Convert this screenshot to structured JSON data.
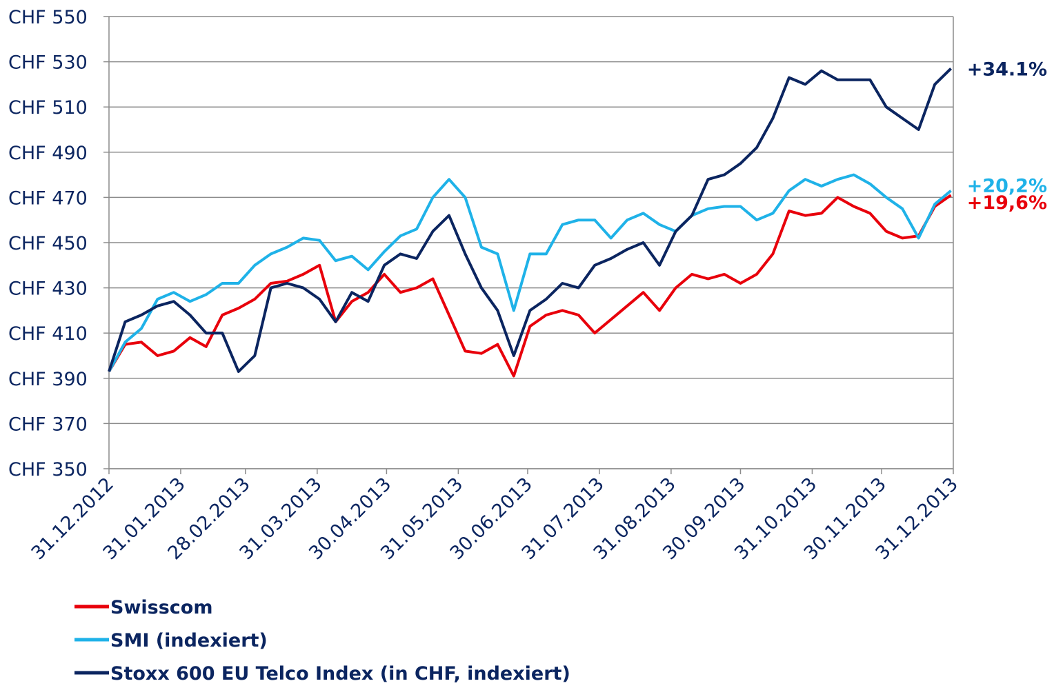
{
  "chart_data": {
    "type": "line",
    "x": [
      "31.12.2012",
      "07.01.2013",
      "14.01.2013",
      "21.01.2013",
      "28.01.2013",
      "04.02.2013",
      "11.02.2013",
      "18.02.2013",
      "25.02.2013",
      "04.03.2013",
      "11.03.2013",
      "18.03.2013",
      "25.03.2013",
      "01.04.2013",
      "08.04.2013",
      "15.04.2013",
      "22.04.2013",
      "29.04.2013",
      "06.05.2013",
      "13.05.2013",
      "20.05.2013",
      "27.05.2013",
      "03.06.2013",
      "10.06.2013",
      "17.06.2013",
      "24.06.2013",
      "01.07.2013",
      "08.07.2013",
      "15.07.2013",
      "22.07.2013",
      "29.07.2013",
      "05.08.2013",
      "12.08.2013",
      "19.08.2013",
      "26.08.2013",
      "02.09.2013",
      "09.09.2013",
      "16.09.2013",
      "23.09.2013",
      "30.09.2013",
      "07.10.2013",
      "14.10.2013",
      "21.10.2013",
      "28.10.2013",
      "04.11.2013",
      "11.11.2013",
      "18.11.2013",
      "25.11.2013",
      "02.12.2013",
      "09.12.2013",
      "16.12.2013",
      "23.12.2013",
      "30.12.2013"
    ],
    "series": [
      {
        "name": "Swisscom",
        "color": "#e8000b",
        "end_label": "+19,6%",
        "values": [
          393,
          405,
          406,
          400,
          402,
          408,
          404,
          418,
          421,
          425,
          432,
          433,
          436,
          440,
          415,
          424,
          428,
          436,
          428,
          430,
          434,
          418,
          402,
          401,
          405,
          391,
          413,
          418,
          420,
          418,
          410,
          416,
          422,
          428,
          420,
          430,
          436,
          434,
          436,
          432,
          436,
          445,
          464,
          462,
          463,
          470,
          466,
          463,
          455,
          452,
          453,
          466,
          471
        ]
      },
      {
        "name": "SMI (indexiert)",
        "color": "#1fb2e8",
        "end_label": "+20,2%",
        "values": [
          393,
          406,
          412,
          425,
          428,
          424,
          427,
          432,
          432,
          440,
          445,
          448,
          452,
          451,
          442,
          444,
          438,
          446,
          453,
          456,
          470,
          478,
          470,
          448,
          445,
          420,
          445,
          445,
          458,
          460,
          460,
          452,
          460,
          463,
          458,
          455,
          462,
          465,
          466,
          466,
          460,
          463,
          473,
          478,
          475,
          478,
          480,
          476,
          470,
          465,
          452,
          467,
          473
        ]
      },
      {
        "name": "Stoxx 600 EU Telco Index (in CHF, indexiert)",
        "color": "#0b2560",
        "end_label": "+34.1%",
        "values": [
          393,
          415,
          418,
          422,
          424,
          418,
          410,
          410,
          393,
          400,
          430,
          432,
          430,
          425,
          415,
          428,
          424,
          440,
          445,
          443,
          455,
          462,
          445,
          430,
          420,
          400,
          420,
          425,
          432,
          430,
          440,
          443,
          447,
          450,
          440,
          455,
          462,
          478,
          480,
          485,
          492,
          505,
          523,
          520,
          526,
          522,
          522,
          522,
          510,
          505,
          500,
          520,
          527
        ]
      }
    ],
    "xlim": [
      "31.12.2012",
      "31.12.2013"
    ],
    "xticks": [
      "31.12.2012",
      "31.01.2013",
      "28.02.2013",
      "31.03.2013",
      "30.04.2013",
      "31.05.2013",
      "30.06.2013",
      "31.07.2013",
      "31.08.2013",
      "30.09.2013",
      "31.10.2013",
      "30.11.2013",
      "31.12.2013"
    ],
    "ylim": [
      350,
      550
    ],
    "yticks": [
      {
        "value": 350,
        "label": "CHF 350"
      },
      {
        "value": 370,
        "label": "CHF 370"
      },
      {
        "value": 390,
        "label": "CHF 390"
      },
      {
        "value": 410,
        "label": "CHF 410"
      },
      {
        "value": 430,
        "label": "CHF 430"
      },
      {
        "value": 450,
        "label": "CHF 450"
      },
      {
        "value": 470,
        "label": "CHF 470"
      },
      {
        "value": 490,
        "label": "CHF 490"
      },
      {
        "value": 510,
        "label": "CHF 510"
      },
      {
        "value": 530,
        "label": "CHF 530"
      },
      {
        "value": 550,
        "label": "CHF 550"
      }
    ],
    "grid": true,
    "legend": "bottom-left"
  }
}
